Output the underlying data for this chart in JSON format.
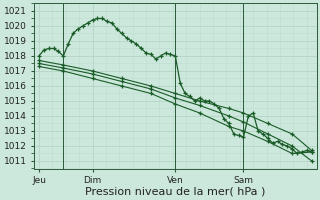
{
  "background_color": "#cce8dc",
  "grid_color_major": "#b0d0c0",
  "grid_color_minor": "#c0dcd0",
  "line_color": "#1a5c28",
  "xlabel": "Pression niveau de la mer( hPa )",
  "xlabel_fontsize": 8,
  "ylim": [
    1010.5,
    1021.5
  ],
  "yticks": [
    1011,
    1012,
    1013,
    1014,
    1015,
    1016,
    1017,
    1018,
    1019,
    1020,
    1021
  ],
  "xtick_labels": [
    "Jeu",
    "Dim",
    "Ven",
    "Sam"
  ],
  "xtick_positions": [
    0.5,
    6.0,
    14.5,
    21.5
  ],
  "vlines_x": [
    3.0,
    14.5,
    21.5
  ],
  "xlim": [
    0,
    29
  ],
  "series1_x": [
    0.5,
    1.0,
    1.5,
    2.0,
    2.5,
    3.0,
    3.5,
    4.0,
    4.5,
    5.0,
    5.5,
    6.0,
    6.5,
    7.0,
    7.5,
    8.0,
    8.5,
    9.0,
    9.5,
    10.0,
    10.5,
    11.0,
    11.5,
    12.0,
    12.5,
    13.0,
    13.5,
    14.0,
    14.5,
    15.0,
    15.5,
    16.0,
    16.5,
    17.0,
    17.5,
    18.0,
    18.5,
    19.0,
    19.5,
    20.0,
    20.5,
    21.0,
    21.5,
    22.0,
    22.5,
    23.0,
    23.5,
    24.0,
    24.5,
    25.0,
    25.5,
    26.0,
    26.5,
    27.0,
    27.5,
    28.0,
    28.5
  ],
  "series1_y": [
    1018.0,
    1018.4,
    1018.5,
    1018.5,
    1018.3,
    1018.0,
    1018.8,
    1019.5,
    1019.8,
    1020.0,
    1020.2,
    1020.4,
    1020.5,
    1020.5,
    1020.3,
    1020.2,
    1019.8,
    1019.5,
    1019.2,
    1019.0,
    1018.8,
    1018.5,
    1018.2,
    1018.1,
    1017.8,
    1018.0,
    1018.2,
    1018.1,
    1018.0,
    1016.2,
    1015.5,
    1015.3,
    1015.0,
    1015.2,
    1015.0,
    1015.0,
    1014.8,
    1014.5,
    1013.8,
    1013.5,
    1012.8,
    1012.7,
    1012.6,
    1014.0,
    1014.2,
    1013.0,
    1012.8,
    1012.5,
    1012.2,
    1012.3,
    1012.1,
    1012.0,
    1011.8,
    1011.5,
    1011.6,
    1011.7,
    1011.6
  ],
  "series2_x": [
    0.5,
    3.0,
    6.0,
    9.0,
    12.0,
    14.5,
    17.0,
    20.0,
    21.5,
    24.0,
    26.5,
    28.5
  ],
  "series2_y": [
    1017.7,
    1017.4,
    1017.0,
    1016.5,
    1016.0,
    1015.5,
    1015.0,
    1014.5,
    1014.2,
    1013.5,
    1012.8,
    1011.7
  ],
  "series3_x": [
    0.5,
    3.0,
    6.0,
    9.0,
    12.0,
    14.5,
    17.0,
    20.0,
    21.5,
    24.0,
    26.5,
    28.5
  ],
  "series3_y": [
    1017.5,
    1017.2,
    1016.8,
    1016.3,
    1015.8,
    1015.2,
    1014.7,
    1014.0,
    1013.6,
    1012.8,
    1012.0,
    1011.0
  ],
  "series4_x": [
    0.5,
    3.0,
    6.0,
    9.0,
    12.0,
    14.5,
    17.0,
    20.0,
    21.5,
    24.0,
    26.5,
    28.5
  ],
  "series4_y": [
    1017.3,
    1017.0,
    1016.5,
    1016.0,
    1015.5,
    1014.8,
    1014.2,
    1013.3,
    1013.0,
    1012.3,
    1011.5,
    1011.6
  ]
}
